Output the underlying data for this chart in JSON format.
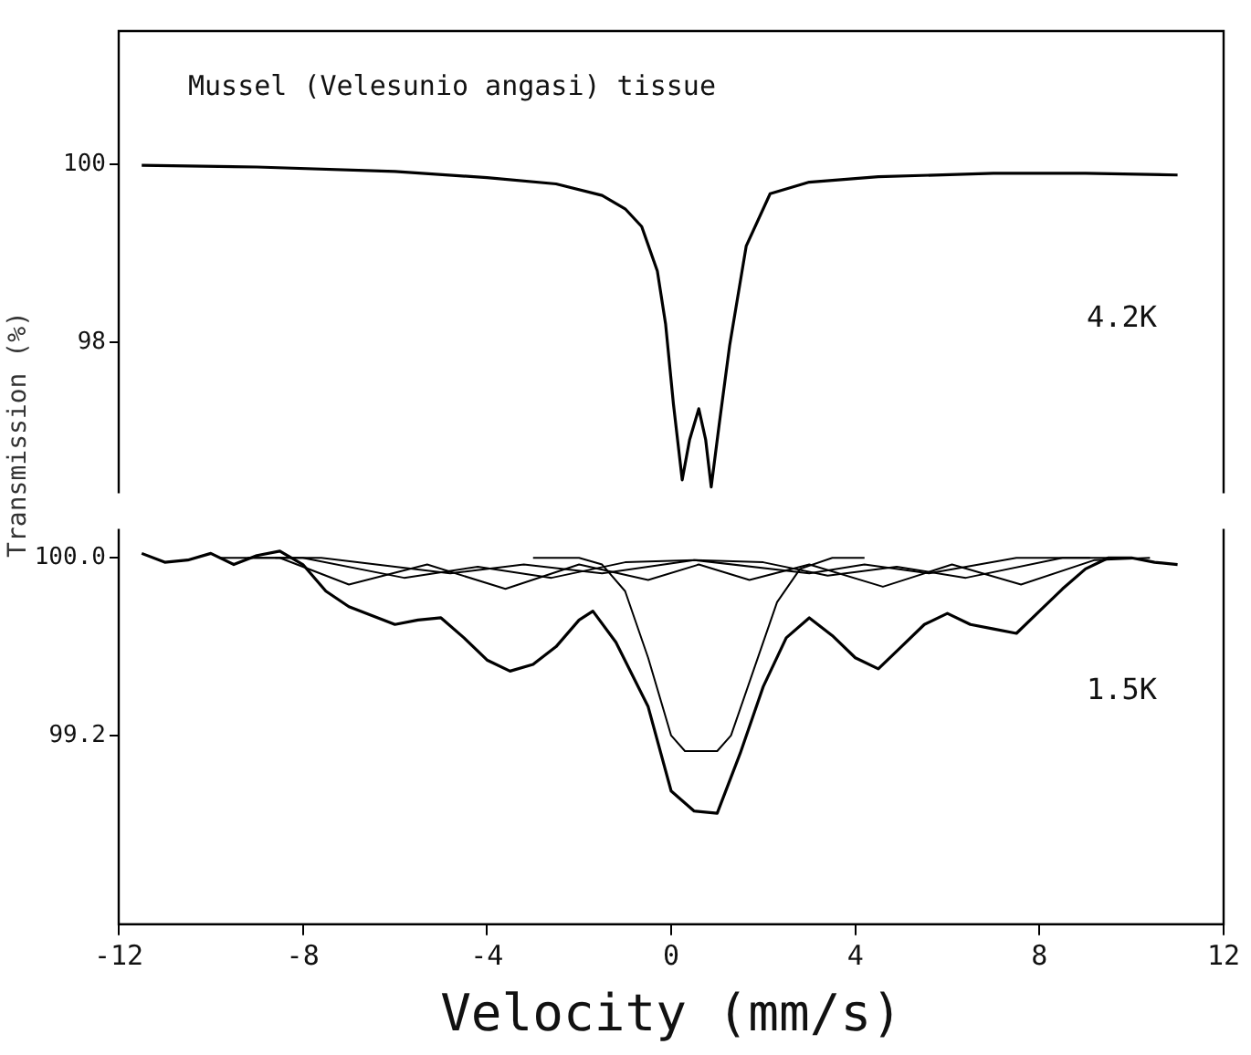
{
  "chart_data": [
    {
      "type": "line",
      "title": "Mussel (Velesunio angasi) tissue",
      "ylabel": "Transmission (%)",
      "tick_labels": "y",
      "xlim": [
        -12,
        12
      ],
      "ylim": [
        96.3,
        101.5
      ],
      "yticks": [
        100,
        98
      ],
      "series": [
        {
          "name": "4.2K",
          "color": "#000000",
          "x": [
            -11.5,
            -9,
            -6,
            -4,
            -2.5,
            -1.5,
            -1,
            -0.64,
            -0.3,
            -0.12,
            0.05,
            0.24,
            0.4,
            0.6,
            0.75,
            0.87,
            1.05,
            1.27,
            1.63,
            2.15,
            3,
            4.5,
            7,
            9,
            11
          ],
          "values": [
            99.99,
            99.97,
            99.92,
            99.85,
            99.78,
            99.65,
            99.5,
            99.3,
            98.8,
            98.2,
            97.3,
            96.45,
            96.9,
            97.25,
            96.9,
            96.37,
            97.1,
            97.96,
            99.08,
            99.67,
            99.8,
            99.86,
            99.9,
            99.9,
            99.88
          ]
        }
      ]
    },
    {
      "type": "line",
      "xlabel": "Velocity (mm/s)",
      "xlim": [
        -12,
        12
      ],
      "ylim": [
        98.35,
        100.13
      ],
      "xticks": [
        -12,
        -8,
        -4,
        0,
        4,
        8,
        12
      ],
      "yticks": [
        {
          "value": 100,
          "label": "100.0"
        },
        99.2
      ],
      "series": [
        {
          "name": "1.5K",
          "color": "#000000",
          "x": [
            -11.5,
            -11,
            -10.5,
            -10,
            -9.5,
            -9,
            -8.5,
            -8,
            -7.5,
            -7,
            -6.5,
            -6,
            -5.5,
            -5,
            -4.5,
            -4,
            -3.5,
            -3,
            -2.5,
            -2,
            -1.7,
            -1.2,
            -0.5,
            0,
            0.5,
            1,
            1.5,
            2,
            2.5,
            3,
            3.5,
            4,
            4.5,
            5,
            5.5,
            6,
            6.5,
            7,
            7.5,
            8,
            8.5,
            9,
            9.5,
            10,
            10.5,
            11
          ],
          "values": [
            100.02,
            99.98,
            99.99,
            100.02,
            99.97,
            100.01,
            100.03,
            99.97,
            99.85,
            99.78,
            99.74,
            99.7,
            99.72,
            99.73,
            99.64,
            99.54,
            99.49,
            99.52,
            99.6,
            99.72,
            99.76,
            99.62,
            99.33,
            98.95,
            98.86,
            98.85,
            99.12,
            99.42,
            99.64,
            99.73,
            99.65,
            99.55,
            99.5,
            99.6,
            99.7,
            99.75,
            99.7,
            99.68,
            99.66,
            99.76,
            99.86,
            99.95,
            100,
            100,
            99.98,
            99.97
          ]
        },
        {
          "color": "#000000",
          "x": [
            -3,
            -2,
            -1.5,
            -1,
            -0.5,
            0,
            0.3,
            1,
            1.3,
            1.8,
            2.3,
            2.8,
            3.5,
            4.2
          ],
          "values": [
            100,
            100,
            99.97,
            99.85,
            99.55,
            99.2,
            99.13,
            99.13,
            99.2,
            99.5,
            99.8,
            99.95,
            100,
            100
          ]
        },
        {
          "color": "#000000",
          "x": [
            -9.8,
            -8.5,
            -7,
            -5.3,
            -3.6,
            -2,
            -0.5,
            0.6,
            1.7,
            3,
            4.6,
            6.1,
            7.6,
            9.2,
            10.4
          ],
          "values": [
            100,
            100,
            99.88,
            99.97,
            99.86,
            99.97,
            99.9,
            99.97,
            99.9,
            99.97,
            99.87,
            99.97,
            99.88,
            99.99,
            100
          ]
        },
        {
          "color": "#000000",
          "x": [
            -9.2,
            -8,
            -5.8,
            -4.2,
            -2.6,
            -1,
            0.5,
            2,
            3.4,
            4.9,
            6.4,
            8.5,
            9.8
          ],
          "values": [
            100,
            100,
            99.91,
            99.96,
            99.91,
            99.98,
            99.99,
            99.98,
            99.92,
            99.96,
            99.91,
            100,
            100
          ]
        },
        {
          "color": "#000000",
          "x": [
            -8.6,
            -7.6,
            -4.8,
            -3.2,
            -1.5,
            0.5,
            3,
            4.2,
            5.6,
            7.5,
            9.1
          ],
          "values": [
            100,
            100,
            99.93,
            99.97,
            99.93,
            99.99,
            99.93,
            99.97,
            99.93,
            100,
            100
          ]
        }
      ]
    }
  ]
}
